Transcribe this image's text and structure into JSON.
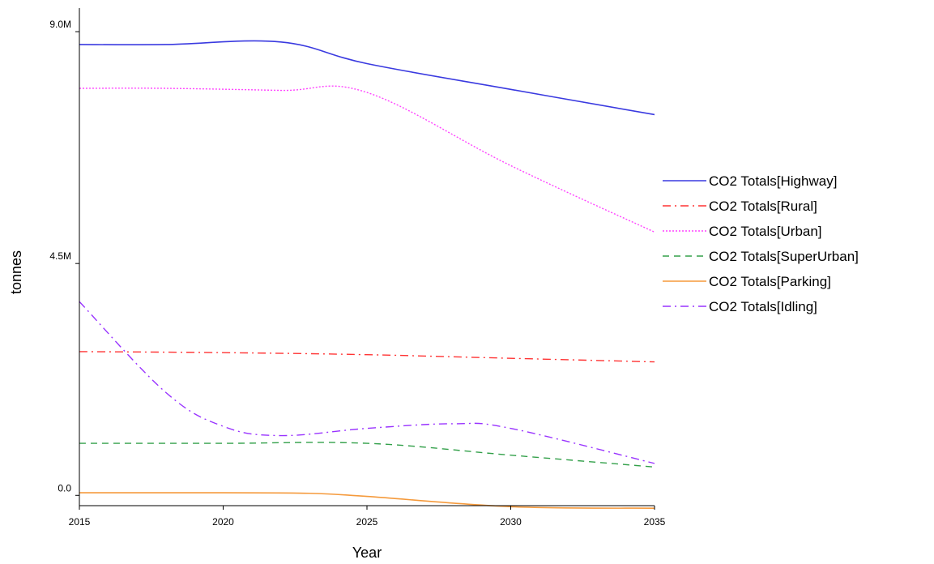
{
  "chart_data": {
    "type": "line",
    "title": "",
    "xlabel": "Year",
    "ylabel": "tonnes",
    "xlim": [
      2015,
      2035
    ],
    "ylim": [
      -200000,
      9300000
    ],
    "x_ticks": [
      {
        "value": 2015,
        "label": "2015"
      },
      {
        "value": 2020,
        "label": "2020"
      },
      {
        "value": 2025,
        "label": "2025"
      },
      {
        "value": 2030,
        "label": "2030"
      },
      {
        "value": 2035,
        "label": "2035"
      }
    ],
    "y_ticks": [
      {
        "value": 0,
        "label": "0.0"
      },
      {
        "value": 4500000,
        "label": "4.5M"
      },
      {
        "value": 9000000,
        "label": "9.0M"
      }
    ],
    "grid": false,
    "legend_position": "right",
    "series": [
      {
        "name": "CO2 Totals[Highway]",
        "color": "#3a3ae0",
        "dash": "solid",
        "x": [
          2015,
          2018,
          2022,
          2025,
          2030,
          2035
        ],
        "values": [
          8750000,
          8750000,
          8800000,
          8380000,
          7880000,
          7390000
        ]
      },
      {
        "name": "CO2 Totals[Rural]",
        "color": "#ff3333",
        "dash": "dashdot",
        "x": [
          2015,
          2020,
          2025,
          2030,
          2035
        ],
        "values": [
          2790000,
          2770000,
          2730000,
          2660000,
          2590000
        ]
      },
      {
        "name": "CO2 Totals[Urban]",
        "color": "#ff44ff",
        "dash": "dotted",
        "x": [
          2015,
          2018,
          2022,
          2025,
          2030,
          2035
        ],
        "values": [
          7900000,
          7900000,
          7860000,
          7820000,
          6400000,
          5110000
        ]
      },
      {
        "name": "CO2 Totals[SuperUrban]",
        "color": "#33a04a",
        "dash": "dashed",
        "x": [
          2015,
          2020,
          2025,
          2030,
          2035
        ],
        "values": [
          1010000,
          1010000,
          1010000,
          780000,
          550000
        ]
      },
      {
        "name": "CO2 Totals[Parking]",
        "color": "#f59a3c",
        "dash": "solid",
        "x": [
          2015,
          2020,
          2023,
          2025,
          2030,
          2035
        ],
        "values": [
          50000,
          50000,
          40000,
          -20000,
          -220000,
          -250000
        ]
      },
      {
        "name": "CO2 Totals[Idling]",
        "color": "#9933ff",
        "dash": "dashdot",
        "x": [
          2015,
          2018,
          2020,
          2022,
          2025,
          2028,
          2030,
          2035
        ],
        "values": [
          3760000,
          2000000,
          1340000,
          1160000,
          1300000,
          1390000,
          1300000,
          620000
        ]
      }
    ]
  }
}
